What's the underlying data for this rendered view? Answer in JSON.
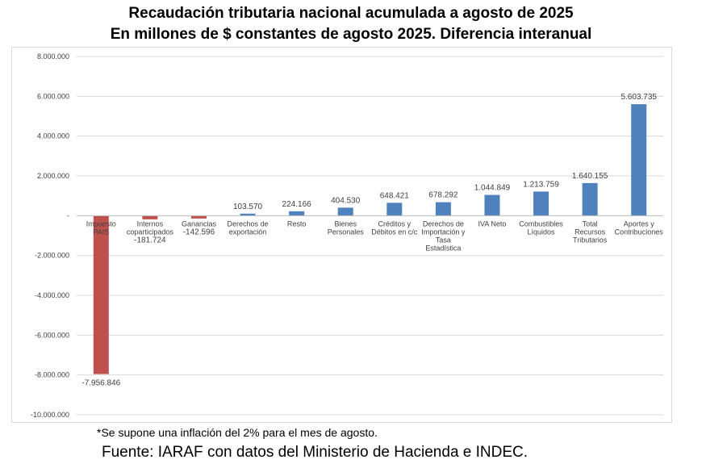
{
  "header": {
    "title": "Recaudación tributaria nacional acumulada a agosto de 2025",
    "subtitle": "En millones de $ constantes de agosto 2025. Diferencia interanual"
  },
  "footer": {
    "note": "*Se supone una inflación del 2% para el mes de agosto.",
    "source": "Fuente: IARAF con datos del Ministerio de Hacienda e INDEC."
  },
  "chart_data": {
    "type": "bar",
    "title": "Recaudación tributaria nacional acumulada a agosto de 2025",
    "subtitle": "En millones de $ constantes de agosto 2025. Diferencia interanual",
    "xlabel": "",
    "ylabel": "",
    "ylim": [
      -10000000,
      8000000
    ],
    "yticks": [
      8000000,
      6000000,
      4000000,
      2000000,
      0,
      -2000000,
      -4000000,
      -6000000,
      -8000000,
      -10000000
    ],
    "ytick_labels": [
      "8.000.000",
      "6.000.000",
      "4.000.000",
      "2.000.000",
      "-",
      "-2.000.000",
      "-4.000.000",
      "-6.000.000",
      "-8.000.000",
      "-10.000.000"
    ],
    "grid": true,
    "positive_color": "#4f81bd",
    "negative_color": "#c0504d",
    "categories": [
      [
        "Impuesto",
        "PAIS"
      ],
      [
        "Internos",
        "coparticipados"
      ],
      [
        "Ganancias"
      ],
      [
        "Derechos de",
        "exportación"
      ],
      [
        "Resto"
      ],
      [
        "Bienes",
        "Personales"
      ],
      [
        "Créditos y",
        "Débitos en c/c"
      ],
      [
        "Derechos de",
        "Importación y",
        "Tasa",
        "Estadística"
      ],
      [
        "IVA Neto"
      ],
      [
        "Combustibles",
        "Líquidos"
      ],
      [
        "Total",
        "Recursos",
        "Tributarios"
      ],
      [
        "Aportes y",
        "Contribuciones"
      ]
    ],
    "values": [
      -7956846,
      -181724,
      -142596,
      103570,
      224166,
      404530,
      648421,
      678292,
      1044849,
      1213759,
      1640155,
      5603735
    ],
    "value_labels": [
      "-7.956.846",
      "-181.724",
      "-142.596",
      "103.570",
      "224.166",
      "404.530",
      "648.421",
      "678.292",
      "1.044.849",
      "1.213.759",
      "1.640.155",
      "5.603.735"
    ]
  }
}
